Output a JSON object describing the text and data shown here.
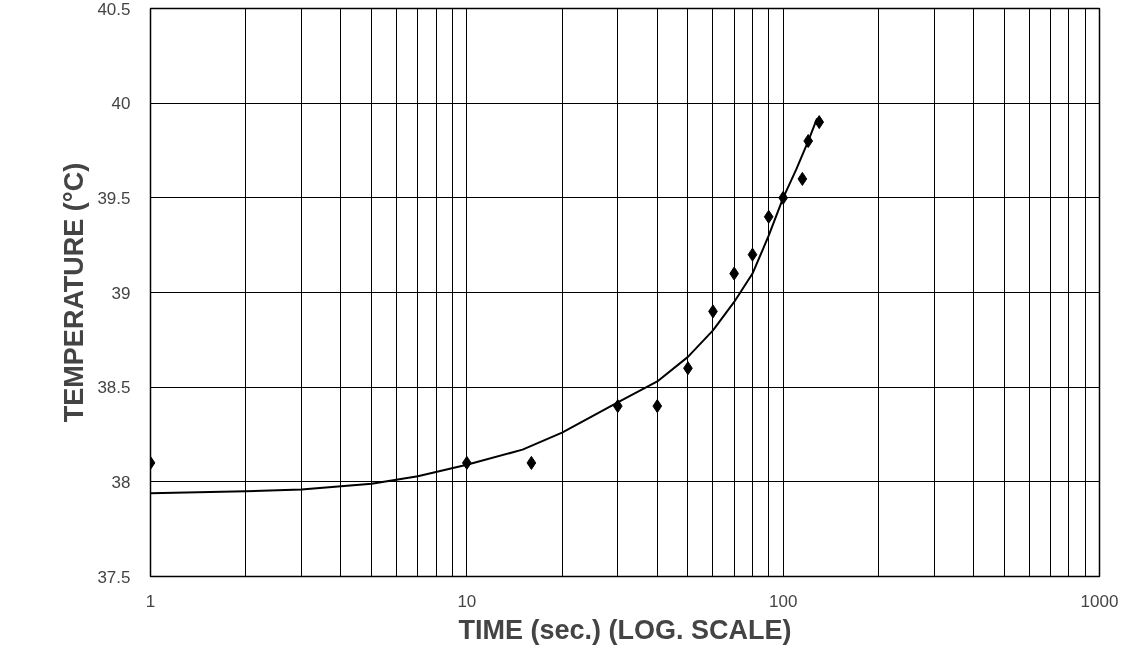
{
  "chart_data": {
    "type": "scatter",
    "xlabel": "TIME (sec.) (LOG. SCALE)",
    "ylabel": "TEMPERATURE (°C)",
    "log": "x",
    "grid": true,
    "marker": "diamond",
    "xlim": [
      1,
      1000
    ],
    "ylim": [
      37.5,
      40.5
    ],
    "xticks": [
      1,
      {
        "value": 2,
        "label": null
      },
      {
        "value": 3,
        "label": null
      },
      {
        "value": 4,
        "label": null
      },
      {
        "value": 5,
        "label": null
      },
      {
        "value": 6,
        "label": null
      },
      {
        "value": 7,
        "label": null
      },
      {
        "value": 8,
        "label": null
      },
      {
        "value": 9,
        "label": null
      },
      10,
      {
        "value": 20,
        "label": null
      },
      {
        "value": 30,
        "label": null
      },
      {
        "value": 40,
        "label": null
      },
      {
        "value": 50,
        "label": null
      },
      {
        "value": 60,
        "label": null
      },
      {
        "value": 70,
        "label": null
      },
      {
        "value": 80,
        "label": null
      },
      {
        "value": 90,
        "label": null
      },
      100,
      {
        "value": 200,
        "label": null
      },
      {
        "value": 300,
        "label": null
      },
      {
        "value": 400,
        "label": null
      },
      {
        "value": 500,
        "label": null
      },
      {
        "value": 600,
        "label": null
      },
      {
        "value": 700,
        "label": null
      },
      {
        "value": 800,
        "label": null
      },
      {
        "value": 900,
        "label": null
      },
      1000
    ],
    "yticks": [
      37.5,
      38,
      38.5,
      39,
      39.5,
      40,
      40.5
    ],
    "series": [
      {
        "color": "#000000",
        "x": [
          1,
          10,
          16,
          30,
          40,
          50,
          60,
          70,
          80,
          90,
          100,
          115,
          120,
          130
        ],
        "values": [
          38.1,
          38.1,
          38.1,
          38.4,
          38.4,
          38.6,
          38.9,
          39.1,
          39.2,
          39.4,
          39.5,
          39.6,
          39.8,
          39.9
        ]
      },
      {
        "type": "line",
        "color": "#000000",
        "marker": "none",
        "x": [
          1,
          2,
          3,
          5,
          7,
          10,
          15,
          20,
          30,
          40,
          50,
          60,
          70,
          80,
          90,
          100,
          110,
          120,
          128
        ],
        "values": [
          37.94,
          37.95,
          37.96,
          37.99,
          38.03,
          38.09,
          38.17,
          38.26,
          38.42,
          38.53,
          38.66,
          38.8,
          38.95,
          39.1,
          39.3,
          39.5,
          39.65,
          39.8,
          39.92
        ]
      }
    ]
  }
}
